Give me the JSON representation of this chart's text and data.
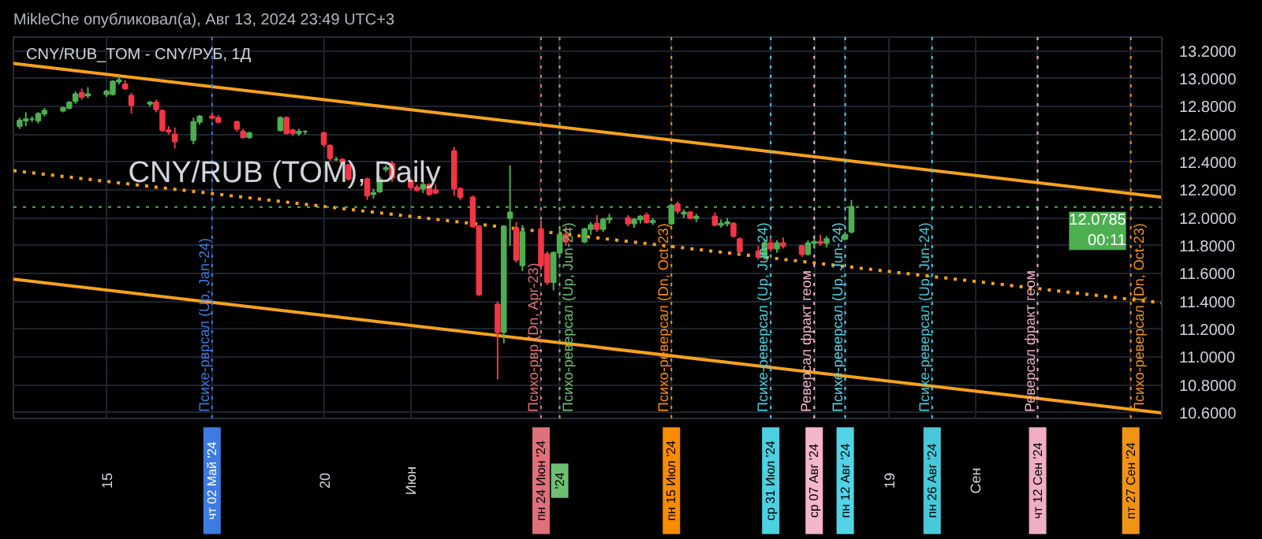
{
  "chart_data": {
    "type": "candlestick",
    "title": "CNY/RUB_TOM - CNY/РУБ, 1Д",
    "subtitle": "MikleChe опубликовал(а), Авг 13, 2024 23:49 UTC+3",
    "annotations": [
      "CNY/RUB (TOM), Daily"
    ],
    "x": [
      "2024-04-01",
      "2024-04-02",
      "2024-04-03",
      "2024-04-04",
      "2024-04-05",
      "2024-04-08",
      "2024-04-09",
      "2024-04-10",
      "2024-04-11",
      "2024-04-12",
      "2024-04-15",
      "2024-04-16",
      "2024-04-17",
      "2024-04-18",
      "2024-04-19",
      "2024-04-22",
      "2024-04-23",
      "2024-04-24",
      "2024-04-25",
      "2024-04-26",
      "2024-04-29",
      "2024-04-30",
      "2024-05-02",
      "2024-05-03",
      "2024-05-06",
      "2024-05-07",
      "2024-05-08",
      "2024-05-13",
      "2024-05-14",
      "2024-05-15",
      "2024-05-16",
      "2024-05-17",
      "2024-05-20",
      "2024-05-21",
      "2024-05-22",
      "2024-05-23",
      "2024-05-24",
      "2024-05-27",
      "2024-05-28",
      "2024-05-29",
      "2024-05-30",
      "2024-05-31",
      "2024-06-03",
      "2024-06-04",
      "2024-06-05",
      "2024-06-06",
      "2024-06-07",
      "2024-06-10",
      "2024-06-11",
      "2024-06-13",
      "2024-06-14",
      "2024-06-17",
      "2024-06-18",
      "2024-06-19",
      "2024-06-20",
      "2024-06-21",
      "2024-06-24",
      "2024-06-25",
      "2024-06-26",
      "2024-06-27",
      "2024-06-28",
      "2024-07-01",
      "2024-07-02",
      "2024-07-03",
      "2024-07-04",
      "2024-07-05",
      "2024-07-08",
      "2024-07-09",
      "2024-07-10",
      "2024-07-11",
      "2024-07-12",
      "2024-07-15",
      "2024-07-16",
      "2024-07-17",
      "2024-07-18",
      "2024-07-19",
      "2024-07-22",
      "2024-07-23",
      "2024-07-24",
      "2024-07-25",
      "2024-07-26",
      "2024-07-29",
      "2024-07-30",
      "2024-07-31",
      "2024-08-01",
      "2024-08-02",
      "2024-08-05",
      "2024-08-06",
      "2024-08-07",
      "2024-08-08",
      "2024-08-09",
      "2024-08-12",
      "2024-08-13"
    ],
    "ohlc": [
      [
        12.66,
        12.72,
        12.64,
        12.7
      ],
      [
        12.7,
        12.76,
        12.66,
        12.71
      ],
      [
        12.71,
        12.73,
        12.69,
        12.71
      ],
      [
        12.7,
        12.76,
        12.68,
        12.75
      ],
      [
        12.75,
        12.79,
        12.73,
        12.77
      ],
      [
        12.77,
        12.8,
        12.76,
        12.79
      ],
      [
        12.79,
        12.84,
        12.78,
        12.83
      ],
      [
        12.84,
        12.91,
        12.82,
        12.89
      ],
      [
        12.9,
        12.93,
        12.85,
        12.87
      ],
      [
        12.88,
        12.94,
        12.86,
        12.89
      ],
      [
        12.89,
        12.92,
        12.87,
        12.91
      ],
      [
        12.89,
        12.99,
        12.88,
        12.98
      ],
      [
        12.98,
        13.02,
        12.96,
        12.99
      ],
      [
        12.96,
        12.99,
        12.92,
        12.93
      ],
      [
        12.88,
        12.9,
        12.75,
        12.81
      ],
      [
        12.82,
        12.84,
        12.8,
        12.83
      ],
      [
        12.83,
        12.85,
        12.76,
        12.78
      ],
      [
        12.77,
        12.78,
        12.62,
        12.63
      ],
      [
        12.63,
        12.66,
        12.6,
        12.62
      ],
      [
        12.6,
        12.65,
        12.5,
        12.55
      ],
      [
        12.56,
        12.72,
        12.53,
        12.69
      ],
      [
        12.69,
        12.74,
        12.67,
        12.73
      ],
      [
        12.73,
        12.75,
        12.71,
        12.72
      ],
      [
        12.72,
        12.74,
        12.68,
        12.69
      ],
      [
        12.69,
        12.7,
        12.62,
        12.64
      ],
      [
        12.62,
        12.64,
        12.57,
        12.58
      ],
      [
        12.58,
        12.62,
        12.57,
        12.61
      ],
      [
        12.63,
        12.73,
        12.62,
        12.72
      ],
      [
        12.72,
        12.73,
        12.6,
        12.61
      ],
      [
        12.63,
        12.64,
        12.59,
        12.61
      ],
      [
        12.61,
        12.64,
        12.59,
        12.62
      ],
      [
        12.62,
        12.63,
        12.6,
        12.62
      ],
      [
        12.61,
        12.62,
        12.51,
        12.53
      ],
      [
        12.52,
        12.53,
        12.41,
        12.43
      ],
      [
        12.42,
        12.44,
        12.41,
        12.42
      ],
      [
        12.42,
        12.43,
        12.39,
        12.4
      ],
      [
        12.38,
        12.39,
        12.27,
        12.28
      ],
      [
        12.28,
        12.29,
        12.13,
        12.16
      ],
      [
        12.17,
        12.21,
        12.14,
        12.18
      ],
      [
        12.19,
        12.3,
        12.18,
        12.28
      ],
      [
        12.35,
        12.38,
        12.33,
        12.36
      ],
      [
        12.39,
        12.41,
        12.26,
        12.29
      ],
      [
        12.27,
        12.29,
        12.2,
        12.22
      ],
      [
        12.22,
        12.24,
        12.19,
        12.2
      ],
      [
        12.21,
        12.27,
        12.18,
        12.24
      ],
      [
        12.24,
        12.25,
        12.16,
        12.17
      ],
      [
        12.2,
        12.24,
        12.17,
        12.18
      ],
      [
        12.48,
        12.51,
        12.16,
        12.21
      ],
      [
        12.21,
        12.22,
        12.13,
        12.15
      ],
      [
        12.15,
        12.16,
        11.93,
        11.94
      ],
      [
        11.94,
        11.95,
        11.44,
        11.45
      ],
      [
        11.38,
        11.4,
        10.84,
        11.18
      ],
      [
        11.18,
        11.94,
        11.1,
        11.94
      ],
      [
        12.0,
        12.38,
        11.8,
        12.04
      ],
      [
        11.93,
        11.97,
        11.68,
        11.7
      ],
      [
        11.66,
        11.95,
        11.62,
        11.9
      ],
      [
        11.92,
        11.98,
        11.63,
        11.66
      ],
      [
        11.74,
        11.76,
        11.52,
        11.54
      ],
      [
        11.54,
        11.76,
        11.48,
        11.75
      ],
      [
        11.75,
        11.92,
        11.73,
        11.88
      ],
      [
        11.88,
        11.94,
        11.8,
        11.83
      ],
      [
        11.83,
        11.93,
        11.82,
        11.92
      ],
      [
        11.92,
        11.97,
        11.88,
        11.95
      ],
      [
        11.96,
        12.02,
        11.9,
        11.92
      ],
      [
        11.92,
        12.0,
        11.9,
        11.99
      ],
      [
        11.99,
        12.03,
        11.96,
        12.0
      ],
      [
        12.0,
        12.02,
        11.94,
        11.96
      ],
      [
        11.96,
        12.0,
        11.93,
        11.99
      ],
      [
        11.99,
        12.02,
        11.96,
        12.01
      ],
      [
        12.02,
        12.04,
        11.96,
        11.97
      ],
      [
        11.97,
        12.0,
        11.95,
        11.98
      ],
      [
        11.96,
        12.1,
        11.95,
        12.09
      ],
      [
        12.1,
        12.12,
        12.03,
        12.05
      ],
      [
        12.03,
        12.06,
        12.0,
        12.04
      ],
      [
        12.04,
        12.05,
        11.99,
        12.0
      ],
      [
        12.0,
        12.03,
        11.97,
        12.01
      ],
      [
        12.01,
        12.04,
        11.94,
        11.95
      ],
      [
        11.95,
        11.99,
        11.93,
        11.96
      ],
      [
        11.96,
        12.0,
        11.94,
        11.97
      ],
      [
        11.96,
        11.97,
        11.86,
        11.87
      ],
      [
        11.85,
        11.86,
        11.74,
        11.76
      ],
      [
        11.76,
        11.8,
        11.7,
        11.72
      ],
      [
        11.72,
        11.85,
        11.7,
        11.82
      ],
      [
        11.82,
        11.86,
        11.76,
        11.78
      ],
      [
        11.78,
        11.84,
        11.75,
        11.82
      ],
      [
        11.82,
        11.86,
        11.78,
        11.8
      ],
      [
        11.8,
        11.81,
        11.72,
        11.74
      ],
      [
        11.74,
        11.84,
        11.73,
        11.82
      ],
      [
        11.82,
        11.85,
        11.78,
        11.83
      ],
      [
        11.83,
        11.88,
        11.8,
        11.82
      ],
      [
        11.82,
        11.87,
        11.79,
        11.85
      ],
      [
        11.85,
        11.9,
        11.84,
        11.88
      ],
      [
        11.9,
        12.13,
        11.89,
        12.08
      ]
    ],
    "series": [
      {
        "type": "line",
        "color": "#f7a21b",
        "line_style": "solid",
        "x": [
          "2024-03-31",
          "2024-10-02"
        ],
        "values": [
          13.11,
          12.15
        ]
      },
      {
        "type": "line",
        "color": "#f7a21b",
        "line_style": "dotted",
        "x": [
          "2024-03-31",
          "2024-10-02"
        ],
        "values": [
          12.34,
          11.39
        ]
      },
      {
        "type": "line",
        "color": "#f7a21b",
        "line_style": "solid",
        "x": [
          "2024-03-31",
          "2024-10-02"
        ],
        "values": [
          11.56,
          10.6
        ]
      }
    ],
    "xlim": [
      "2024-03-31",
      "2024-10-02"
    ],
    "ylim": [
      10.56,
      13.3
    ],
    "yticks": [
      {
        "value": 10.6,
        "label": "10.6000"
      },
      {
        "value": 10.8,
        "label": "10.8000"
      },
      {
        "value": 11.0,
        "label": "11.0000"
      },
      {
        "value": 11.2,
        "label": "11.2000"
      },
      {
        "value": 11.4,
        "label": "11.4000"
      },
      {
        "value": 11.6,
        "label": "11.6000"
      },
      {
        "value": 11.8,
        "label": "11.8000"
      },
      {
        "value": 12.0,
        "label": "12.0000"
      },
      {
        "value": 12.2,
        "label": "12.2000"
      },
      {
        "value": 12.4,
        "label": "12.4000"
      },
      {
        "value": 12.6,
        "label": "12.6000"
      },
      {
        "value": 12.8,
        "label": "12.8000"
      },
      {
        "value": 13.0,
        "label": "13.0000"
      },
      {
        "value": 13.2,
        "label": "13.2000"
      }
    ],
    "xticks": [
      {
        "value": "2024-04-15",
        "label": "15"
      },
      {
        "value": "2024-05-02",
        "label": "чт 02 Май '24"
      },
      {
        "value": "2024-05-20",
        "label": "20"
      },
      {
        "value": "2024-06-03",
        "label": "Июн"
      },
      {
        "value": "2024-06-24",
        "label": "пн 24 Июн '24"
      },
      {
        "value": "2024-06-27",
        "label": "'24"
      },
      {
        "value": "2024-07-15",
        "label": "пн 15 Июл '24"
      },
      {
        "value": "2024-07-31",
        "label": "ср 31 Июл '24"
      },
      {
        "value": "2024-08-07",
        "label": "ср 07 Авг '24"
      },
      {
        "value": "2024-08-12",
        "label": "пн 12 Авг '24"
      },
      {
        "value": "2024-08-19",
        "label": "19"
      },
      {
        "value": "2024-08-26",
        "label": "пн 26 Авг '24"
      },
      {
        "value": "2024-09-02",
        "label": "Сен"
      },
      {
        "value": "2024-09-12",
        "label": "чт 12 Сен '24"
      },
      {
        "value": "2024-09-27",
        "label": "пт 27 Сен '24"
      }
    ],
    "ref_lines": [
      {
        "axis": "y",
        "value": 12.0785,
        "label": "12.0785\n00:11",
        "color": "#4caf50",
        "line_style": "dotted"
      },
      {
        "axis": "x",
        "value": "2024-05-02",
        "label": "Психе-рврсал (Up, Jan-24)",
        "color": "#3d7be0",
        "line_style": "dotted"
      },
      {
        "axis": "x",
        "value": "2024-06-24",
        "label": "Психо-рвр (Dn, Apr-23)",
        "color": "#e0707a",
        "line_style": "dotted"
      },
      {
        "axis": "x",
        "value": "2024-06-27",
        "label": "Психо-реверсал (Up, Jun-24)",
        "color": "#6fbf73",
        "line_style": "dotted"
      },
      {
        "axis": "x",
        "value": "2024-07-15",
        "label": "Психо-реверсал (Dn, Oct-23)",
        "color": "#fb8c00",
        "line_style": "dotted"
      },
      {
        "axis": "x",
        "value": "2024-07-31",
        "label": "Психе-реверсал (Up, Jun-24)",
        "color": "#4dd0e1",
        "line_style": "dotted"
      },
      {
        "axis": "x",
        "value": "2024-08-07",
        "label": "Реверсал фракт геом",
        "color": "#f4b6c8",
        "line_style": "dotted"
      },
      {
        "axis": "x",
        "value": "2024-08-12",
        "label": "Психе-реверсал (Up, Jun-24)",
        "color": "#52d4e6",
        "line_style": "dotted"
      },
      {
        "axis": "x",
        "value": "2024-08-26",
        "label": "Психе-реверсал (Up, Jun-24)",
        "color": "#47c9da",
        "line_style": "dotted"
      },
      {
        "axis": "x",
        "value": "2024-09-12",
        "label": "Реверсал фракт геом",
        "color": "#efaec2",
        "line_style": "dotted"
      },
      {
        "axis": "x",
        "value": "2024-09-27",
        "label": "Психо-реверсал (Dn, Oct-23)",
        "color": "#f09416",
        "line_style": "dotted"
      }
    ],
    "grid": true
  }
}
